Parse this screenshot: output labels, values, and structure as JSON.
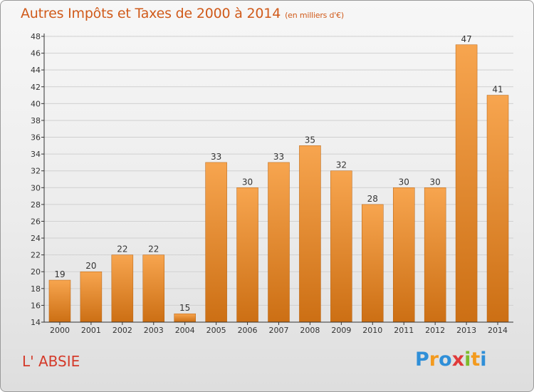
{
  "title": "Autres Impôts et Taxes de 2000 à 2014",
  "subtitle": "(en milliers d'€)",
  "place_name": "L' ABSIE",
  "logo": {
    "text": "Proxiti",
    "letters": [
      {
        "ch": "P",
        "color": "#2f8fd8"
      },
      {
        "ch": "r",
        "color": "#f39a1e"
      },
      {
        "ch": "o",
        "color": "#2f8fd8"
      },
      {
        "ch": "x",
        "color": "#e03a3a"
      },
      {
        "ch": "i",
        "color": "#7dbb2a"
      },
      {
        "ch": "t",
        "color": "#f39a1e"
      },
      {
        "ch": "i",
        "color": "#2f8fd8"
      }
    ]
  },
  "colors": {
    "bar_light": "#f7a54f",
    "bar_dark": "#cc6f14",
    "axis": "#333333",
    "grid": "#d0d0d0",
    "title": "#d05a1a"
  },
  "chart_data": {
    "type": "bar",
    "title": "Autres Impôts et Taxes de 2000 à 2014",
    "xlabel": "",
    "ylabel": "",
    "categories": [
      "2000",
      "2001",
      "2002",
      "2003",
      "2004",
      "2005",
      "2006",
      "2007",
      "2008",
      "2009",
      "2010",
      "2011",
      "2012",
      "2013",
      "2014"
    ],
    "values": [
      19,
      20,
      22,
      22,
      15,
      33,
      30,
      33,
      35,
      32,
      28,
      30,
      30,
      47,
      41
    ],
    "ylim": [
      14,
      48
    ],
    "yticks": [
      14,
      16,
      18,
      20,
      22,
      24,
      26,
      28,
      30,
      32,
      34,
      36,
      38,
      40,
      42,
      44,
      46,
      48
    ],
    "grid": true,
    "legend": "none"
  }
}
